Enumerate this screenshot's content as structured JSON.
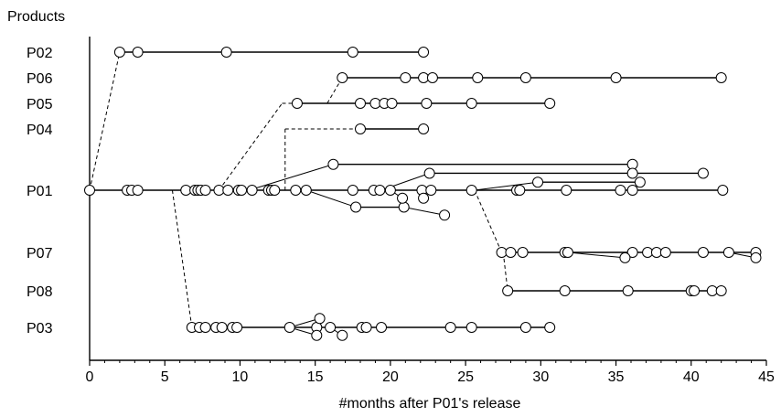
{
  "chart_data": {
    "type": "scatter",
    "title": "",
    "xlabel": "#months after P01's release",
    "ylabel": "Products",
    "xlim": [
      0,
      45
    ],
    "x_ticks": [
      0,
      5,
      10,
      15,
      20,
      25,
      30,
      35,
      40,
      45
    ],
    "grid": false,
    "rows": [
      {
        "id": "P02",
        "label": "P02"
      },
      {
        "id": "P06",
        "label": "P06"
      },
      {
        "id": "P05",
        "label": "P05"
      },
      {
        "id": "P04",
        "label": "P04"
      },
      {
        "id": "P01",
        "label": "P01"
      },
      {
        "id": "P07",
        "label": "P07"
      },
      {
        "id": "P08",
        "label": "P08"
      },
      {
        "id": "P03",
        "label": "P03"
      }
    ],
    "main_timelines": [
      {
        "row": "P02",
        "releases": [
          2.0,
          3.2,
          9.1,
          17.5,
          22.2
        ]
      },
      {
        "row": "P06",
        "releases": [
          16.8,
          21.0,
          22.2,
          22.8,
          25.8,
          29.0,
          35.0,
          42.0
        ]
      },
      {
        "row": "P05",
        "releases": [
          13.8,
          18.0,
          19.0,
          19.6,
          20.1,
          22.4,
          25.4,
          30.6
        ]
      },
      {
        "row": "P04",
        "releases": [
          18.0,
          22.2
        ]
      },
      {
        "row": "P01",
        "releases": [
          0.0,
          2.5,
          2.8,
          3.2,
          6.4,
          7.0,
          7.2,
          7.4,
          7.7,
          8.6,
          9.2,
          9.9,
          10.1,
          10.8,
          11.9,
          12.1,
          12.3,
          13.7,
          14.4,
          17.5,
          18.9,
          19.3,
          20.0,
          22.1,
          22.7,
          25.4,
          28.4,
          28.6,
          31.7,
          35.3,
          36.1,
          42.1
        ]
      },
      {
        "row": "P07",
        "releases": [
          27.4,
          28.0,
          28.8,
          31.6,
          31.8,
          36.1,
          37.1,
          37.7,
          38.3,
          40.8,
          42.5,
          44.3
        ]
      },
      {
        "row": "P08",
        "releases": [
          27.8,
          31.6,
          35.8,
          40.0,
          40.2,
          41.4,
          42.0
        ]
      },
      {
        "row": "P03",
        "releases": [
          6.8,
          7.3,
          7.7,
          8.4,
          8.8,
          9.5,
          9.8,
          13.3,
          15.1,
          16.0,
          18.1,
          18.4,
          19.4,
          24.0,
          25.4,
          29.0,
          30.6
        ]
      }
    ],
    "branch_timelines": [
      {
        "row": "P01",
        "releases": [
          16.2,
          36.1
        ],
        "dy": -1.45
      },
      {
        "row": "P01",
        "releases": [
          22.6,
          36.1,
          40.8
        ],
        "dy": -0.95
      },
      {
        "row": "P01",
        "releases": [
          29.8,
          36.6
        ],
        "dy": -0.45
      },
      {
        "row": "P01",
        "releases": [
          17.7,
          20.9
        ],
        "dy": 0.95
      },
      {
        "row": "P03",
        "releases": [
          15.3
        ],
        "dy": -0.5
      }
    ],
    "branches": [
      {
        "from": {
          "row": "P01",
          "x": 10.6
        },
        "to": {
          "row": "P01",
          "x": 16.2,
          "dy": -1.45
        }
      },
      {
        "from": {
          "row": "P01",
          "x": 19.4
        },
        "to": {
          "row": "P01",
          "x": 22.6,
          "dy": -0.95
        }
      },
      {
        "from": {
          "row": "P01",
          "x": 25.6
        },
        "to": {
          "row": "P01",
          "x": 29.8,
          "dy": -0.45
        }
      },
      {
        "from": {
          "row": "P01",
          "x": 14.4
        },
        "to": {
          "row": "P01",
          "x": 17.7,
          "dy": 0.95
        }
      },
      {
        "from": {
          "row": "P01",
          "x": 20.0
        },
        "to": {
          "row": "P01",
          "x": 20.8,
          "dy": 0.45
        }
      },
      {
        "from": {
          "row": "P01",
          "x": 22.1
        },
        "to": {
          "row": "P01",
          "x": 22.2,
          "dy": 0.45
        }
      },
      {
        "from": {
          "row": "P01",
          "x": 20.9,
          "dy": 0.95
        },
        "to": {
          "row": "P01",
          "x": 23.6,
          "dy": 1.4
        }
      },
      {
        "from": {
          "row": "P07",
          "x": 31.8
        },
        "to": {
          "row": "P07",
          "x": 35.6,
          "dy": 0.3
        }
      },
      {
        "from": {
          "row": "P07",
          "x": 42.5
        },
        "to": {
          "row": "P07",
          "x": 44.3,
          "dy": 0.3
        }
      },
      {
        "from": {
          "row": "P03",
          "x": 13.3
        },
        "to": {
          "row": "P03",
          "x": 15.3,
          "dy": -0.5
        }
      },
      {
        "from": {
          "row": "P03",
          "x": 13.3
        },
        "to": {
          "row": "P03",
          "x": 15.1,
          "dy": 0.45
        }
      },
      {
        "from": {
          "row": "P03",
          "x": 16.0
        },
        "to": {
          "row": "P03",
          "x": 16.8,
          "dy": 0.45
        }
      }
    ],
    "derivations": [
      {
        "from": {
          "row": "P01",
          "x": 0.0
        },
        "to": {
          "row": "P02",
          "x": 2.0
        }
      },
      {
        "from": {
          "row": "P01",
          "x": 8.6
        },
        "to": {
          "row": "P05",
          "x": 12.8
        },
        "via": {
          "row": "P05",
          "x": 13.8
        }
      },
      {
        "from": {
          "row": "P01",
          "x": 13.0
        },
        "to": {
          "row": "P04",
          "x": 13.0
        },
        "via": {
          "row": "P04",
          "x": 18.0
        }
      },
      {
        "from": {
          "row": "P05",
          "x": 15.8
        },
        "to": {
          "row": "P06",
          "x": 16.8
        }
      },
      {
        "from": {
          "row": "P01",
          "x": 5.5
        },
        "to": {
          "row": "P03",
          "x": 6.8
        }
      },
      {
        "from": {
          "row": "P01",
          "x": 25.6
        },
        "to": {
          "row": "P07",
          "x": 27.4
        }
      },
      {
        "from": {
          "row": "P07",
          "x": 27.5
        },
        "to": {
          "row": "P08",
          "x": 27.8
        }
      }
    ]
  }
}
